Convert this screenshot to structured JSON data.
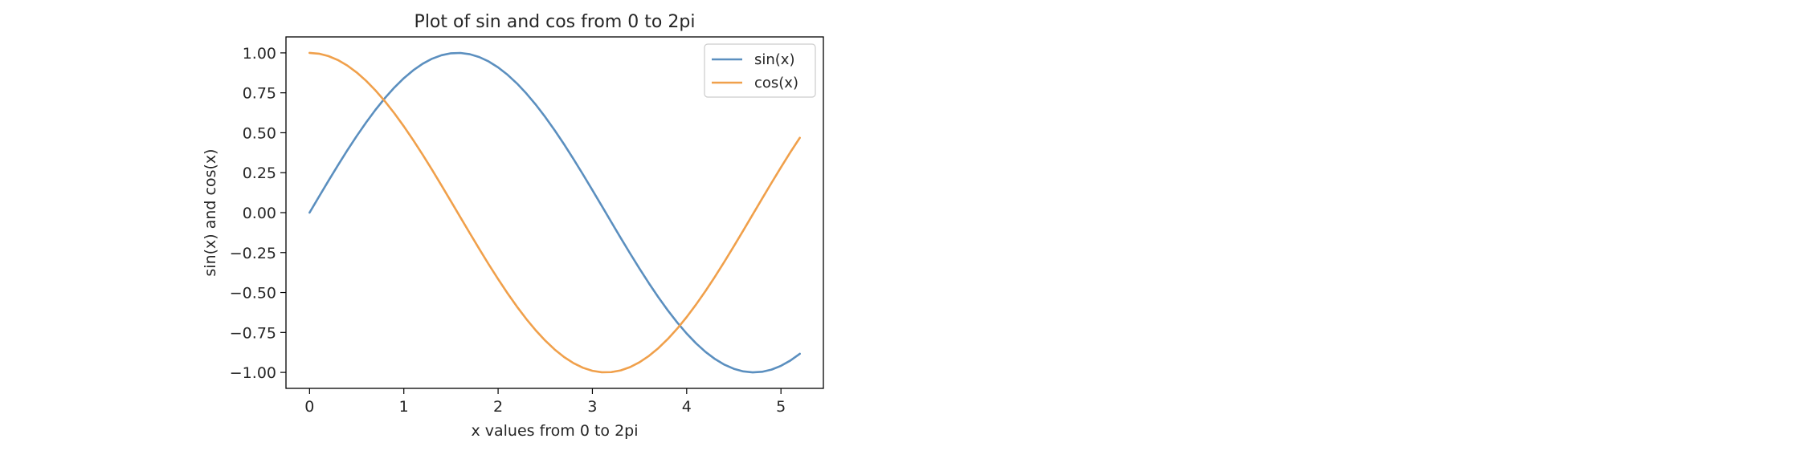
{
  "chart_data": {
    "type": "line",
    "title": "Plot of sin and cos from 0 to 2pi",
    "xlabel": "x values from 0 to 2pi",
    "ylabel": "sin(x) and cos(x)",
    "xlim": [
      -0.25,
      5.45
    ],
    "ylim": [
      -1.1,
      1.1
    ],
    "x_ticks": [
      0,
      1,
      2,
      3,
      4,
      5
    ],
    "x_tick_labels": [
      "0",
      "1",
      "2",
      "3",
      "4",
      "5"
    ],
    "y_ticks": [
      1.0,
      0.75,
      0.5,
      0.25,
      0.0,
      -0.25,
      -0.5,
      -0.75,
      -1.0
    ],
    "y_tick_labels": [
      "1.00",
      "0.75",
      "0.50",
      "0.25",
      "0.00",
      "−0.25",
      "−0.50",
      "−0.75",
      "−1.00"
    ],
    "grid": false,
    "legend_position": "top-right",
    "x": [
      0.0,
      0.1,
      0.2,
      0.3,
      0.4,
      0.5,
      0.6,
      0.7,
      0.8,
      0.9,
      1.0,
      1.1,
      1.2,
      1.3,
      1.4,
      1.5,
      1.6,
      1.7,
      1.8,
      1.9,
      2.0,
      2.1,
      2.2,
      2.3,
      2.4,
      2.5,
      2.6,
      2.7,
      2.8,
      2.9,
      3.0,
      3.1,
      3.2,
      3.3,
      3.4,
      3.5,
      3.6,
      3.7,
      3.8,
      3.9,
      4.0,
      4.1,
      4.2,
      4.3,
      4.4,
      4.5,
      4.6,
      4.7,
      4.8,
      4.9,
      5.0,
      5.1,
      5.2
    ],
    "series": [
      {
        "name": "sin(x)",
        "color": "#5b8fbf",
        "values": [
          0.0,
          0.0998,
          0.1987,
          0.2955,
          0.3894,
          0.4794,
          0.5646,
          0.6442,
          0.7174,
          0.7833,
          0.8415,
          0.8912,
          0.932,
          0.9636,
          0.9854,
          0.9975,
          0.9996,
          0.9917,
          0.9738,
          0.9463,
          0.9093,
          0.8632,
          0.8085,
          0.7457,
          0.6755,
          0.5985,
          0.5155,
          0.4274,
          0.335,
          0.2392,
          0.1411,
          0.0416,
          -0.0584,
          -0.1577,
          -0.2555,
          -0.3508,
          -0.4425,
          -0.5298,
          -0.6119,
          -0.6878,
          -0.7568,
          -0.8183,
          -0.8716,
          -0.9162,
          -0.9516,
          -0.9775,
          -0.9937,
          -0.9999,
          -0.9962,
          -0.9825,
          -0.9589,
          -0.9258,
          -0.8835
        ]
      },
      {
        "name": "cos(x)",
        "color": "#f0a04b",
        "values": [
          1.0,
          0.995,
          0.9801,
          0.9553,
          0.9211,
          0.8776,
          0.8253,
          0.7648,
          0.6967,
          0.6216,
          0.5403,
          0.4536,
          0.3624,
          0.2675,
          0.17,
          0.0707,
          -0.0292,
          -0.1288,
          -0.2272,
          -0.3233,
          -0.4161,
          -0.5048,
          -0.5885,
          -0.6663,
          -0.7374,
          -0.8011,
          -0.8569,
          -0.9041,
          -0.9422,
          -0.971,
          -0.99,
          -0.9991,
          -0.9983,
          -0.9875,
          -0.9668,
          -0.9365,
          -0.8968,
          -0.8481,
          -0.791,
          -0.7259,
          -0.6536,
          -0.5748,
          -0.4903,
          -0.4008,
          -0.3073,
          -0.2108,
          -0.1122,
          -0.0124,
          0.0875,
          0.1865,
          0.2837,
          0.378,
          0.4685
        ]
      }
    ]
  }
}
